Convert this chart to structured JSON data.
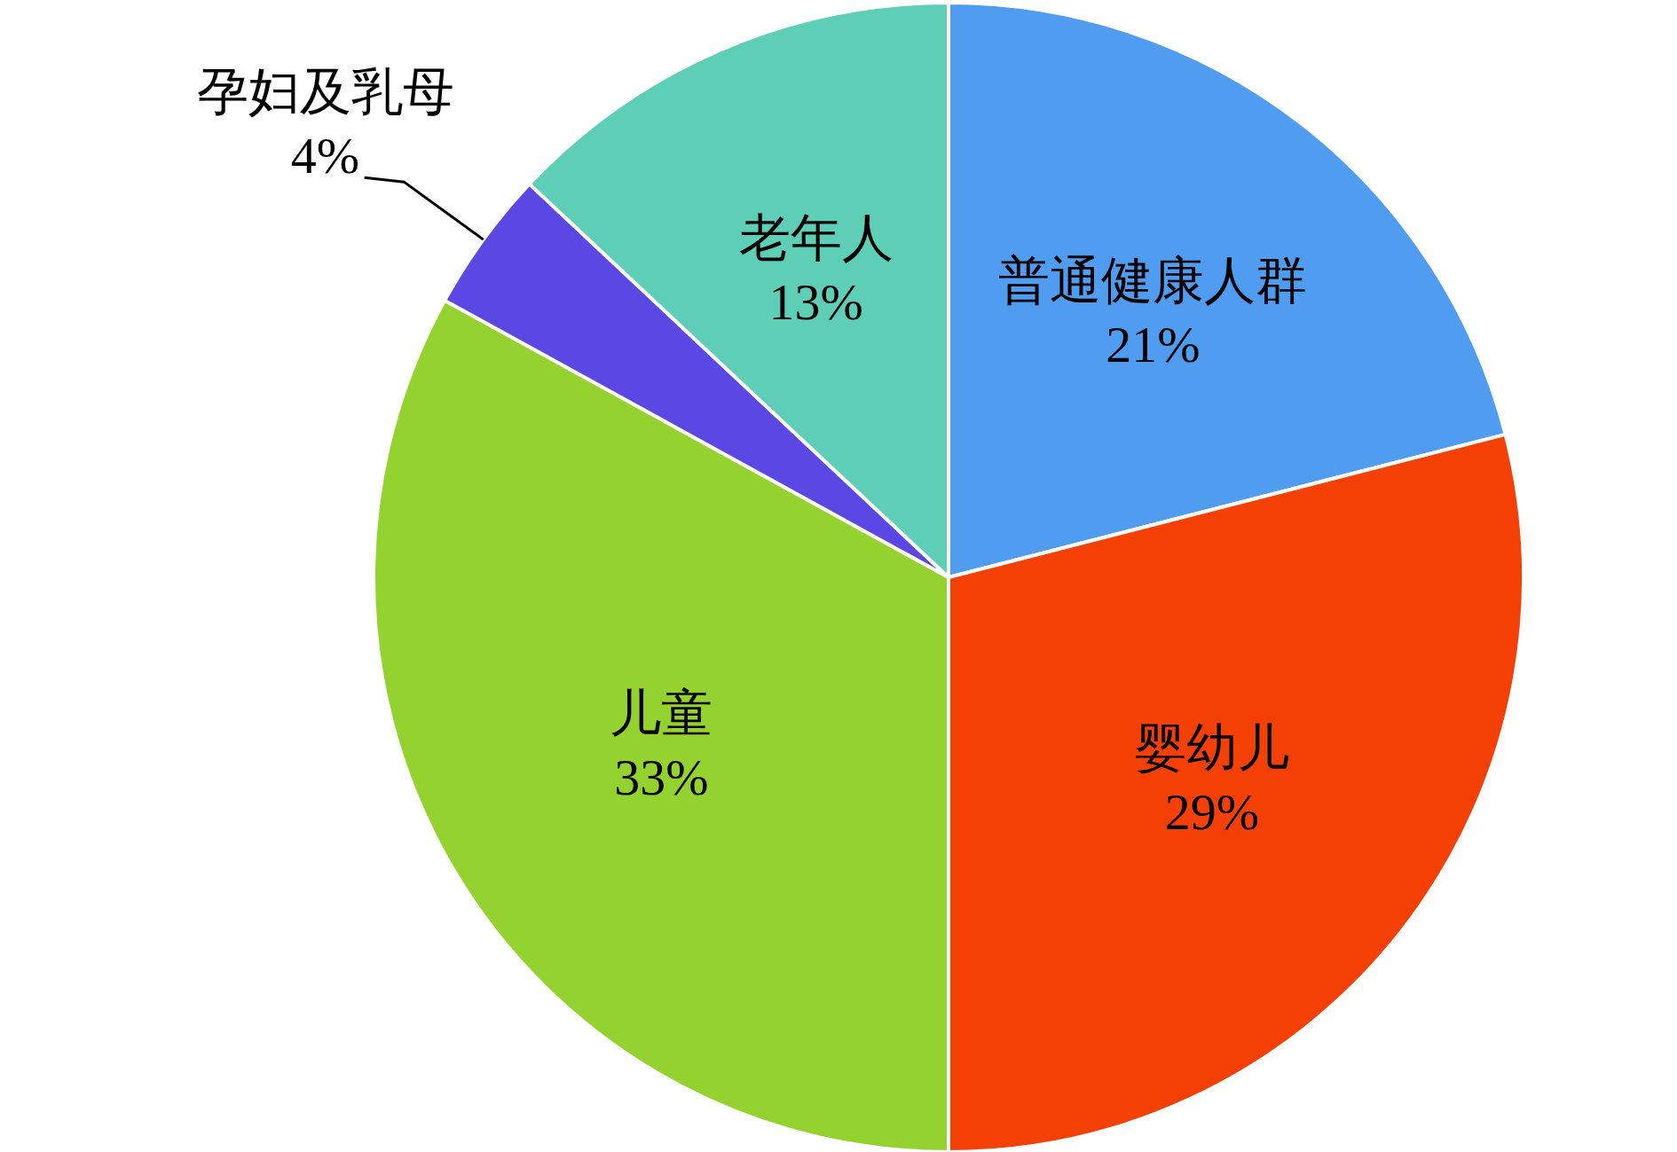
{
  "chart_data": {
    "type": "pie",
    "categories": [
      "普通健康人群",
      "婴幼儿",
      "儿童",
      "孕妇及乳母",
      "老年人"
    ],
    "values": [
      21,
      29,
      33,
      4,
      13
    ],
    "value_labels": [
      "21%",
      "29%",
      "33%",
      "4%",
      "13%"
    ],
    "colors": [
      "#4f9cf0",
      "#f43f05",
      "#94d22f",
      "#5b48e4",
      "#5ecfb6"
    ]
  }
}
